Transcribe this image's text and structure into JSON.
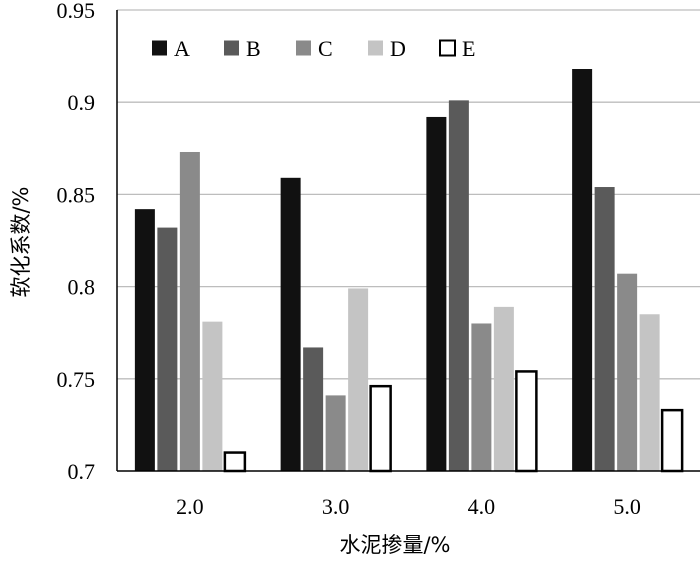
{
  "chart_data": {
    "type": "bar",
    "title": "",
    "xlabel": "水泥掺量/%",
    "ylabel": "软化系数/%",
    "categories": [
      "2.0",
      "3.0",
      "4.0",
      "5.0"
    ],
    "ylim": [
      0.7,
      0.95
    ],
    "yticks": [
      "0.7",
      "0.75",
      "0.8",
      "0.85",
      "0.9",
      "0.95"
    ],
    "grid": true,
    "legend_position": "top-left",
    "series": [
      {
        "name": "A",
        "color": "#111111",
        "values": [
          0.842,
          0.859,
          0.892,
          0.918
        ]
      },
      {
        "name": "B",
        "color": "#5a5a5a",
        "values": [
          0.832,
          0.767,
          0.901,
          0.854
        ]
      },
      {
        "name": "C",
        "color": "#8a8a8a",
        "values": [
          0.873,
          0.741,
          0.78,
          0.807
        ]
      },
      {
        "name": "D",
        "color": "#c4c4c4",
        "values": [
          0.781,
          0.799,
          0.789,
          0.785
        ]
      },
      {
        "name": "E",
        "color": "#ffffff",
        "values": [
          0.71,
          0.746,
          0.754,
          0.733
        ]
      }
    ]
  }
}
